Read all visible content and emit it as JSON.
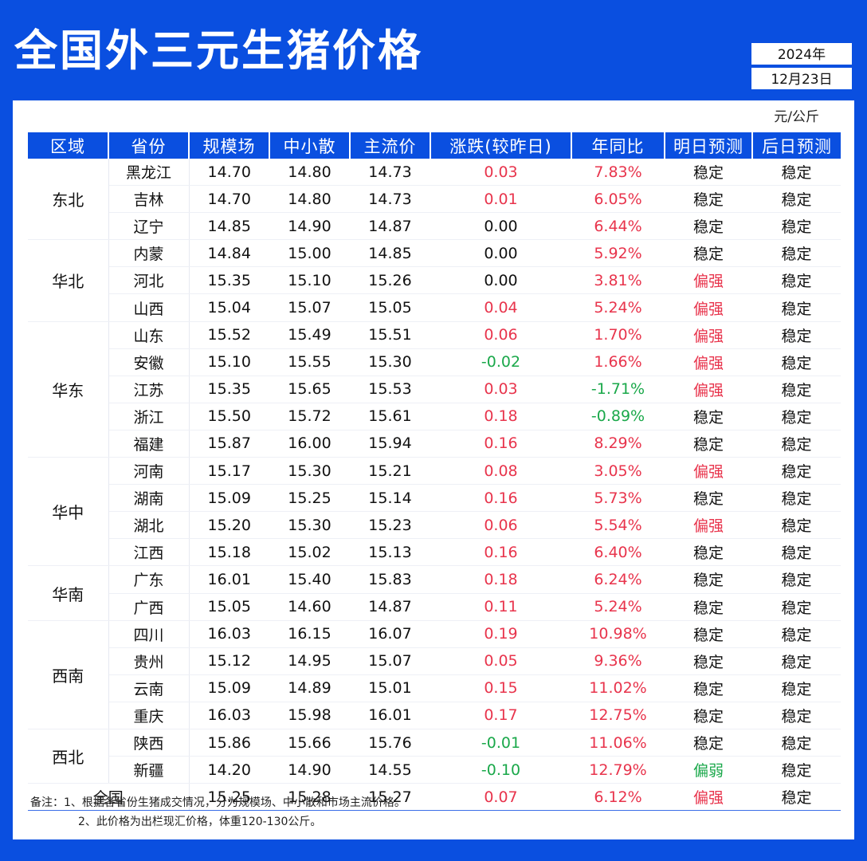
{
  "title": "全国外三元生猪价格",
  "date": {
    "year": "2024年",
    "day": "12月23日"
  },
  "unit": "元/公斤",
  "headers": [
    "区域",
    "省份",
    "规模场",
    "中小散",
    "主流价",
    "涨跌(较昨日)",
    "年同比",
    "明日预测",
    "后日预测"
  ],
  "regions": [
    {
      "name": "东北",
      "rows": 3
    },
    {
      "name": "华北",
      "rows": 3
    },
    {
      "name": "华东",
      "rows": 5
    },
    {
      "name": "华中",
      "rows": 4
    },
    {
      "name": "华南",
      "rows": 2
    },
    {
      "name": "西南",
      "rows": 4
    },
    {
      "name": "西北",
      "rows": 2
    }
  ],
  "rows": [
    [
      "黑龙江",
      "14.70",
      "14.80",
      "14.73",
      "0.03",
      "7.83%",
      "稳定",
      "稳定"
    ],
    [
      "吉林",
      "14.70",
      "14.80",
      "14.73",
      "0.01",
      "6.05%",
      "稳定",
      "稳定"
    ],
    [
      "辽宁",
      "14.85",
      "14.90",
      "14.87",
      "0.00",
      "6.44%",
      "稳定",
      "稳定"
    ],
    [
      "内蒙",
      "14.84",
      "15.00",
      "14.85",
      "0.00",
      "5.92%",
      "稳定",
      "稳定"
    ],
    [
      "河北",
      "15.35",
      "15.10",
      "15.26",
      "0.00",
      "3.81%",
      "偏强",
      "稳定"
    ],
    [
      "山西",
      "15.04",
      "15.07",
      "15.05",
      "0.04",
      "5.24%",
      "偏强",
      "稳定"
    ],
    [
      "山东",
      "15.52",
      "15.49",
      "15.51",
      "0.06",
      "1.70%",
      "偏强",
      "稳定"
    ],
    [
      "安徽",
      "15.10",
      "15.55",
      "15.30",
      "-0.02",
      "1.66%",
      "偏强",
      "稳定"
    ],
    [
      "江苏",
      "15.35",
      "15.65",
      "15.53",
      "0.03",
      "-1.71%",
      "偏强",
      "稳定"
    ],
    [
      "浙江",
      "15.50",
      "15.72",
      "15.61",
      "0.18",
      "-0.89%",
      "稳定",
      "稳定"
    ],
    [
      "福建",
      "15.87",
      "16.00",
      "15.94",
      "0.16",
      "8.29%",
      "稳定",
      "稳定"
    ],
    [
      "河南",
      "15.17",
      "15.30",
      "15.21",
      "0.08",
      "3.05%",
      "偏强",
      "稳定"
    ],
    [
      "湖南",
      "15.09",
      "15.25",
      "15.14",
      "0.16",
      "5.73%",
      "稳定",
      "稳定"
    ],
    [
      "湖北",
      "15.20",
      "15.30",
      "15.23",
      "0.06",
      "5.54%",
      "偏强",
      "稳定"
    ],
    [
      "江西",
      "15.18",
      "15.02",
      "15.13",
      "0.16",
      "6.40%",
      "稳定",
      "稳定"
    ],
    [
      "广东",
      "16.01",
      "15.40",
      "15.83",
      "0.18",
      "6.24%",
      "稳定",
      "稳定"
    ],
    [
      "广西",
      "15.05",
      "14.60",
      "14.87",
      "0.11",
      "5.24%",
      "稳定",
      "稳定"
    ],
    [
      "四川",
      "16.03",
      "16.15",
      "16.07",
      "0.19",
      "10.98%",
      "稳定",
      "稳定"
    ],
    [
      "贵州",
      "15.12",
      "14.95",
      "15.07",
      "0.05",
      "9.36%",
      "稳定",
      "稳定"
    ],
    [
      "云南",
      "15.09",
      "14.89",
      "15.01",
      "0.15",
      "11.02%",
      "稳定",
      "稳定"
    ],
    [
      "重庆",
      "16.03",
      "15.98",
      "16.01",
      "0.17",
      "12.75%",
      "稳定",
      "稳定"
    ],
    [
      "陕西",
      "15.86",
      "15.66",
      "15.76",
      "-0.01",
      "11.06%",
      "稳定",
      "稳定"
    ],
    [
      "新疆",
      "14.20",
      "14.90",
      "14.55",
      "-0.10",
      "12.79%",
      "偏弱",
      "稳定"
    ]
  ],
  "national": {
    "label": "全国",
    "values": [
      "15.25",
      "15.28",
      "15.27",
      "0.07",
      "6.12%",
      "偏强",
      "稳定"
    ]
  },
  "notes": [
    "备注：1、根据各省份生猪成交情况，分为规模场、中小散和市场主流价格。",
    "2、此价格为出栏现汇价格，体重120-130公斤。"
  ],
  "colors": {
    "brand": "#0a4fe0",
    "up": "#e8344c",
    "down": "#1aa84a"
  }
}
